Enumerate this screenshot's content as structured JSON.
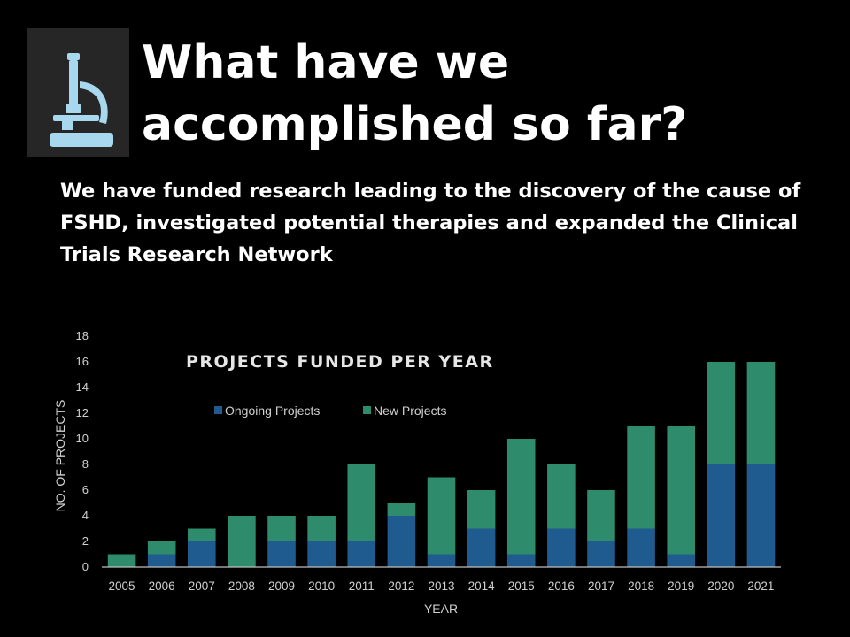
{
  "slide": {
    "title_line1": "What have we",
    "title_line2": "accomplished so far?",
    "subtitle": "We have funded research leading to the discovery of the cause of FSHD, investigated potential therapies and expanded the Clinical Trials Research Network",
    "icon": "microscope-icon",
    "background_color": "#000000"
  },
  "chart_data": {
    "type": "bar",
    "stacked": true,
    "title": "PROJECTS FUNDED PER YEAR",
    "xlabel": "YEAR",
    "ylabel": "NO. OF PROJECTS",
    "ylim": [
      0,
      18
    ],
    "yticks": [
      "0",
      "2",
      "4",
      "6",
      "8",
      "10",
      "12",
      "14",
      "16",
      "18"
    ],
    "grid": false,
    "legend_position": "top-left",
    "categories": [
      "2005",
      "2006",
      "2007",
      "2008",
      "2009",
      "2010",
      "2011",
      "2012",
      "2013",
      "2014",
      "2015",
      "2016",
      "2017",
      "2018",
      "2019",
      "2020",
      "2021"
    ],
    "series": [
      {
        "name": "Ongoing Projects",
        "color": "#1f5b8e",
        "values": [
          0,
          1,
          2,
          0,
          2,
          2,
          2,
          4,
          1,
          3,
          1,
          3,
          2,
          3,
          1,
          8,
          8
        ]
      },
      {
        "name": "New Projects",
        "color": "#2e8b6b",
        "values": [
          1,
          1,
          1,
          4,
          2,
          2,
          6,
          1,
          6,
          3,
          9,
          5,
          4,
          8,
          10,
          8,
          8
        ]
      }
    ]
  }
}
